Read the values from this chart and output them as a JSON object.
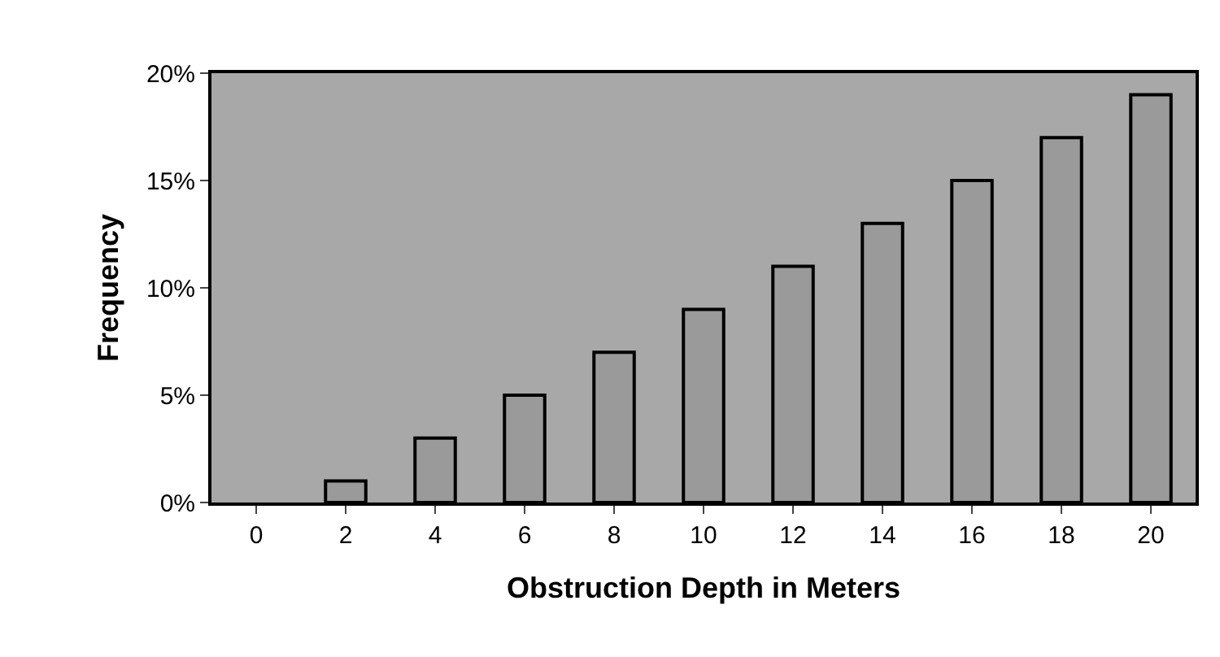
{
  "chart_data": {
    "type": "bar",
    "xlabel": "Obstruction Depth in Meters",
    "ylabel": "Frequency",
    "categories": [
      "0",
      "2",
      "4",
      "6",
      "8",
      "10",
      "12",
      "14",
      "16",
      "18",
      "20"
    ],
    "values": [
      0,
      1,
      3,
      5,
      7,
      9,
      11,
      13,
      15,
      17,
      19
    ],
    "color": "#9a9a9a",
    "ylim": [
      0,
      20
    ],
    "yticks": [
      {
        "value": 0,
        "label": "0%"
      },
      {
        "value": 5,
        "label": "5%"
      },
      {
        "value": 10,
        "label": "10%"
      },
      {
        "value": 15,
        "label": "15%"
      },
      {
        "value": 20,
        "label": "20%"
      }
    ],
    "grid": false,
    "legend": false
  }
}
